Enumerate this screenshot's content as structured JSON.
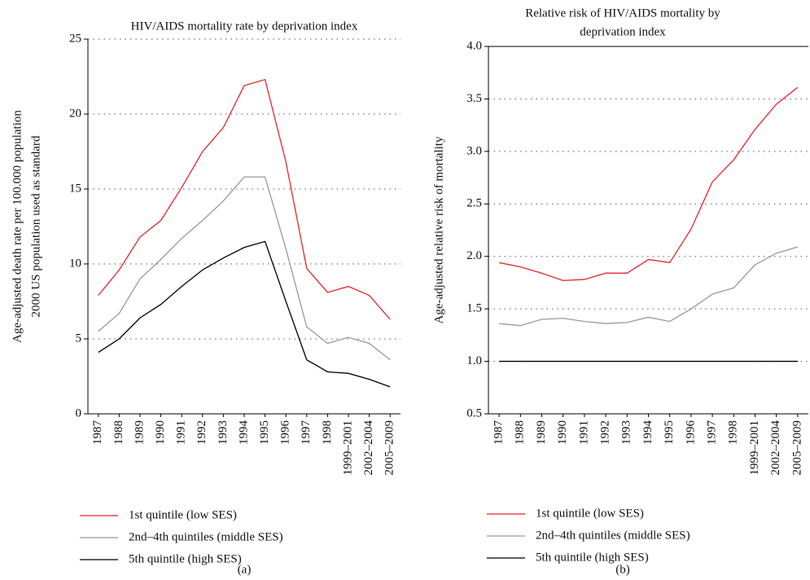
{
  "chart_data": [
    {
      "type": "line",
      "title": "HIV/AIDS mortality rate by deprivation index",
      "ylabel": [
        "Age-adjusted death rate per 100.000 population",
        "2000 US population used as standard"
      ],
      "categories": [
        "1987",
        "1988",
        "1989",
        "1990",
        "1991",
        "1992",
        "1993",
        "1994",
        "1995",
        "1996",
        "1997",
        "1998",
        "1999–2001",
        "2002–2004",
        "2005–2009"
      ],
      "series": [
        {
          "name": "1st quintile (low SES)",
          "color": "#e8262b",
          "values": [
            7.9,
            9.6,
            11.8,
            12.9,
            15.1,
            17.5,
            19.1,
            21.9,
            22.3,
            16.8,
            9.7,
            8.1,
            8.5,
            7.9,
            6.3
          ]
        },
        {
          "name": "2nd–4th quintiles (middle SES)",
          "color": "#9a9a9a",
          "values": [
            5.5,
            6.7,
            9.0,
            10.3,
            11.7,
            12.9,
            14.2,
            15.8,
            15.8,
            11.0,
            5.8,
            4.7,
            5.1,
            4.7,
            3.6
          ]
        },
        {
          "name": "5th quintile (high SES)",
          "color": "#000000",
          "values": [
            4.1,
            5.0,
            6.4,
            7.3,
            8.5,
            9.6,
            10.4,
            11.1,
            11.5,
            7.5,
            3.6,
            2.8,
            2.7,
            2.3,
            1.8
          ]
        }
      ],
      "ylim": [
        0,
        25
      ],
      "yticks": [
        0,
        5,
        10,
        15,
        20,
        25
      ],
      "grid": true,
      "caption": "(a)"
    },
    {
      "type": "line",
      "title": [
        "Relative risk of HIV/AIDS mortality by",
        "deprivation index"
      ],
      "ylabel": [
        "Age-adjusted relative risk of mortality"
      ],
      "categories": [
        "1987",
        "1988",
        "1989",
        "1990",
        "1991",
        "1992",
        "1993",
        "1994",
        "1995",
        "1996",
        "1997",
        "1998",
        "1999–2001",
        "2002–2004",
        "2005–2009"
      ],
      "series": [
        {
          "name": "1st quintile (low SES)",
          "color": "#e8262b",
          "values": [
            1.94,
            1.9,
            1.84,
            1.77,
            1.78,
            1.84,
            1.84,
            1.97,
            1.94,
            2.26,
            2.71,
            2.92,
            3.21,
            3.45,
            3.61
          ]
        },
        {
          "name": "2nd–4th quintiles (middle SES)",
          "color": "#9a9a9a",
          "values": [
            1.36,
            1.34,
            1.4,
            1.41,
            1.38,
            1.36,
            1.37,
            1.42,
            1.38,
            1.5,
            1.64,
            1.7,
            1.92,
            2.03,
            2.09
          ]
        },
        {
          "name": "5th quintile (high SES)",
          "color": "#000000",
          "values": [
            1,
            1,
            1,
            1,
            1,
            1,
            1,
            1,
            1,
            1,
            1,
            1,
            1,
            1,
            1
          ]
        }
      ],
      "ylim": [
        0.5,
        4
      ],
      "yticks": [
        0.5,
        {
          "value": 1,
          "label": "1.0"
        },
        1.5,
        {
          "value": 2,
          "label": "2.0"
        },
        2.5,
        {
          "value": 3,
          "label": "3.0"
        },
        3.5,
        {
          "value": 4,
          "label": "4.0"
        }
      ],
      "grid": true,
      "caption": "(b)"
    }
  ]
}
